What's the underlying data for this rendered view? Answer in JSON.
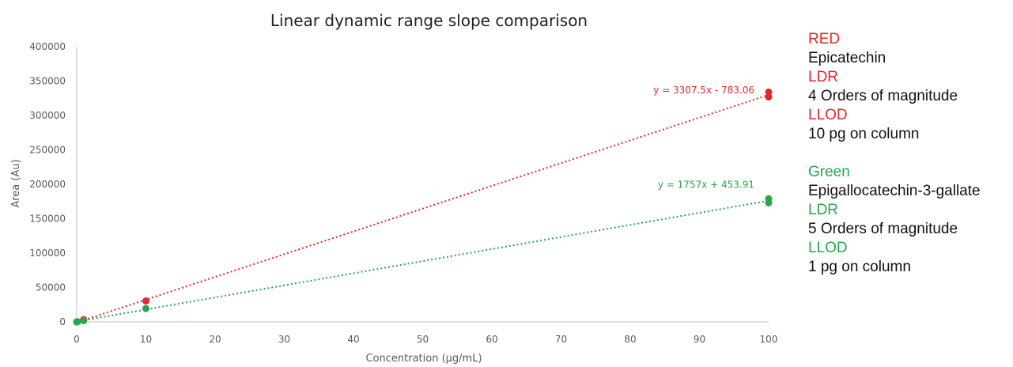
{
  "chart_data": {
    "type": "scatter",
    "title": "Linear dynamic range slope comparison",
    "xlabel": "Concentration (µg/mL)",
    "ylabel": "Area (Au)",
    "xlim": [
      0,
      100
    ],
    "ylim": [
      0,
      400000
    ],
    "x_ticks": [
      0,
      10,
      20,
      30,
      40,
      50,
      60,
      70,
      80,
      90,
      100
    ],
    "y_ticks": [
      0,
      50000,
      100000,
      150000,
      200000,
      250000,
      300000,
      350000,
      400000
    ],
    "grid": false,
    "trendline": "linear, dotted",
    "series": [
      {
        "color": "#e8262a",
        "points": [
          {
            "x": 0.01,
            "y": 40
          },
          {
            "x": 0.1,
            "y": 320
          },
          {
            "x": 1,
            "y": 3300
          },
          {
            "x": 10,
            "y": 30500
          },
          {
            "x": 100,
            "y": 327000
          },
          {
            "x": 100,
            "y": 334000
          }
        ],
        "trendline_equation": "y = 3307.5x - 783.06",
        "slope": 3307.5,
        "intercept": -783.06
      },
      {
        "color": "#26a74a",
        "points": [
          {
            "x": 0.001,
            "y": 2
          },
          {
            "x": 0.01,
            "y": 18
          },
          {
            "x": 0.1,
            "y": 175
          },
          {
            "x": 1,
            "y": 1800
          },
          {
            "x": 10,
            "y": 19500
          },
          {
            "x": 100,
            "y": 173000
          },
          {
            "x": 100,
            "y": 179000
          }
        ],
        "trendline_equation": "y = 1757x + 453.91",
        "slope": 1757,
        "intercept": 453.91
      }
    ]
  },
  "legend_panel": {
    "blocks": [
      {
        "lines": [
          {
            "text": "RED",
            "color": "#e8262a"
          },
          {
            "text": "Epicatechin",
            "color": "#111111"
          },
          {
            "text": "LDR",
            "color": "#e8262a"
          },
          {
            "text": "4 Orders of magnitude",
            "color": "#111111"
          },
          {
            "text": "LLOD",
            "color": "#e8262a"
          },
          {
            "text": "10 pg on column",
            "color": "#111111"
          }
        ]
      },
      {
        "lines": [
          {
            "text": "Green",
            "color": "#26a74a"
          },
          {
            "text": "Epigallocatechin-3-gallate",
            "color": "#111111"
          },
          {
            "text": "LDR",
            "color": "#26a74a"
          },
          {
            "text": "5 Orders of magnitude",
            "color": "#111111"
          },
          {
            "text": "LLOD",
            "color": "#26a74a"
          },
          {
            "text": "1 pg on column",
            "color": "#111111"
          }
        ]
      }
    ]
  }
}
